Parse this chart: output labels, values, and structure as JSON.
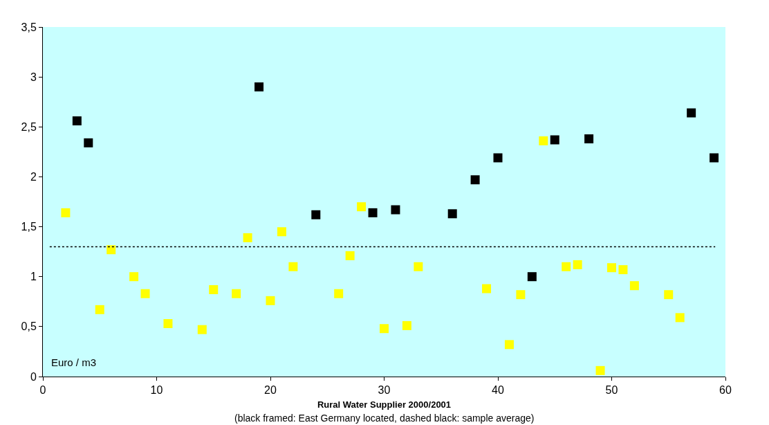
{
  "chart_data": {
    "type": "scatter",
    "xlabel": "Rural Water Supplier 2000/2001",
    "annotations": [
      "Euro / m3",
      "(black framed: East Germany located, dashed black: sample average)"
    ],
    "series": [
      {
        "color": "#ffff00",
        "x": [
          2,
          5,
          6,
          8,
          9,
          11,
          14,
          15,
          17,
          18,
          20,
          21,
          22,
          26,
          27,
          28,
          30,
          32,
          33,
          39,
          41,
          42,
          44,
          46,
          47,
          49,
          50,
          51,
          52,
          55,
          56
        ],
        "values": [
          1.64,
          0.67,
          1.27,
          1.0,
          0.83,
          0.53,
          0.47,
          0.87,
          0.83,
          1.39,
          0.76,
          1.45,
          1.1,
          0.83,
          1.21,
          1.7,
          0.48,
          0.51,
          1.1,
          0.88,
          0.32,
          0.82,
          2.36,
          1.1,
          1.12,
          0.06,
          1.09,
          1.07,
          0.91,
          0.82,
          0.59
        ]
      },
      {
        "color": "#000000",
        "x": [
          3,
          4,
          19,
          24,
          29,
          31,
          36,
          38,
          40,
          43,
          45,
          48,
          57,
          59
        ],
        "values": [
          2.56,
          2.34,
          2.9,
          1.62,
          1.64,
          1.67,
          1.63,
          1.97,
          2.19,
          1.0,
          2.37,
          2.38,
          2.64,
          2.19
        ]
      }
    ],
    "marker": "square",
    "grid": false,
    "xlim": [
      0,
      60
    ],
    "xticks": [
      0,
      10,
      20,
      30,
      40,
      50,
      60
    ],
    "ylim": [
      0,
      3.5
    ],
    "yticks": [
      0,
      {
        "value": 0.5,
        "label": "0,5"
      },
      1,
      {
        "value": 1.5,
        "label": "1,5"
      },
      2,
      {
        "value": 2.5,
        "label": "2,5"
      },
      3,
      {
        "value": 3.5,
        "label": "3,5"
      }
    ],
    "ref_lines": [
      {
        "axis": "y",
        "value": 1.3,
        "color": "#000000",
        "line_style": "dotted"
      }
    ]
  }
}
